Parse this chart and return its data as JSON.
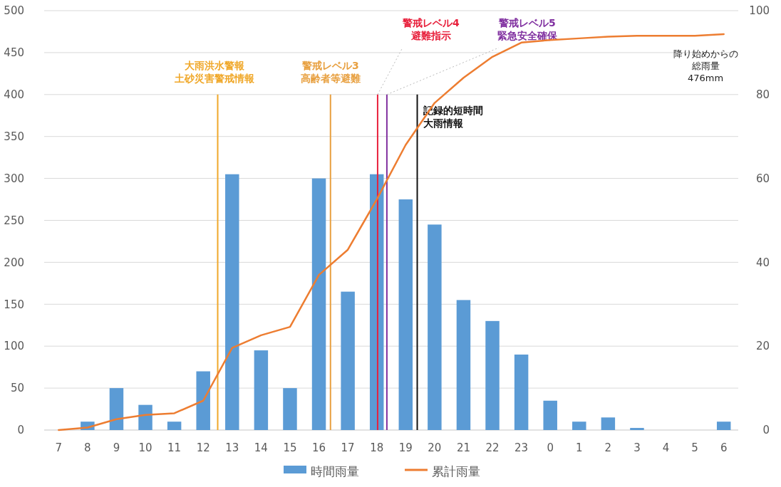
{
  "chart_data": {
    "type": "bar",
    "categories": [
      "7",
      "8",
      "9",
      "10",
      "11",
      "12",
      "13",
      "14",
      "15",
      "16",
      "17",
      "18",
      "19",
      "20",
      "21",
      "22",
      "23",
      "0",
      "1",
      "2",
      "3",
      "4",
      "5",
      "6"
    ],
    "series": [
      {
        "name": "時間雨量",
        "axis": "y2",
        "color": "#5b9bd5",
        "values": [
          0,
          2,
          10,
          6,
          2,
          14,
          61,
          19,
          10,
          60,
          33,
          61,
          55,
          49,
          31,
          26,
          18,
          7,
          2,
          3,
          0.5,
          0,
          0,
          2
        ]
      },
      {
        "name": "累計雨量",
        "type": "line",
        "color": "#ed7d31",
        "values": [
          0,
          3,
          13,
          18,
          20,
          35,
          98,
          113,
          123,
          185,
          215,
          275,
          340,
          390,
          420,
          445,
          462,
          465,
          467,
          469,
          470,
          470,
          470,
          472
        ]
      }
    ],
    "ylim": [
      0,
      500
    ],
    "yticks": [
      0,
      50,
      100,
      150,
      200,
      250,
      300,
      350,
      400,
      450,
      500
    ],
    "y2lim": [
      0,
      100
    ],
    "y2ticks": [
      0,
      20,
      40,
      60,
      80,
      100
    ],
    "grid": "y",
    "legend": "bottom",
    "marker": "none",
    "line_style": "solid",
    "ref_lines": [
      {
        "axis": "x",
        "value": "13",
        "label": "大雨洪水警報土砂災害警戒情報",
        "color": "#f0a82a"
      },
      {
        "axis": "x",
        "value": "16",
        "label": "警戒レベル3高齢者等避難",
        "color": "#e8a040"
      },
      {
        "axis": "x",
        "value": "18",
        "label": "警戒レベル4避難指示",
        "color": "#e8203c"
      },
      {
        "axis": "x",
        "value": "18",
        "label": "警戒レベル5緊急安全確保",
        "color": "#8030a0"
      },
      {
        "axis": "x",
        "value": "19",
        "label": "記録的短時間大雨情報",
        "color": "#111111"
      }
    ],
    "annotations": [
      "降り始めからの総雨量476mm"
    ]
  }
}
